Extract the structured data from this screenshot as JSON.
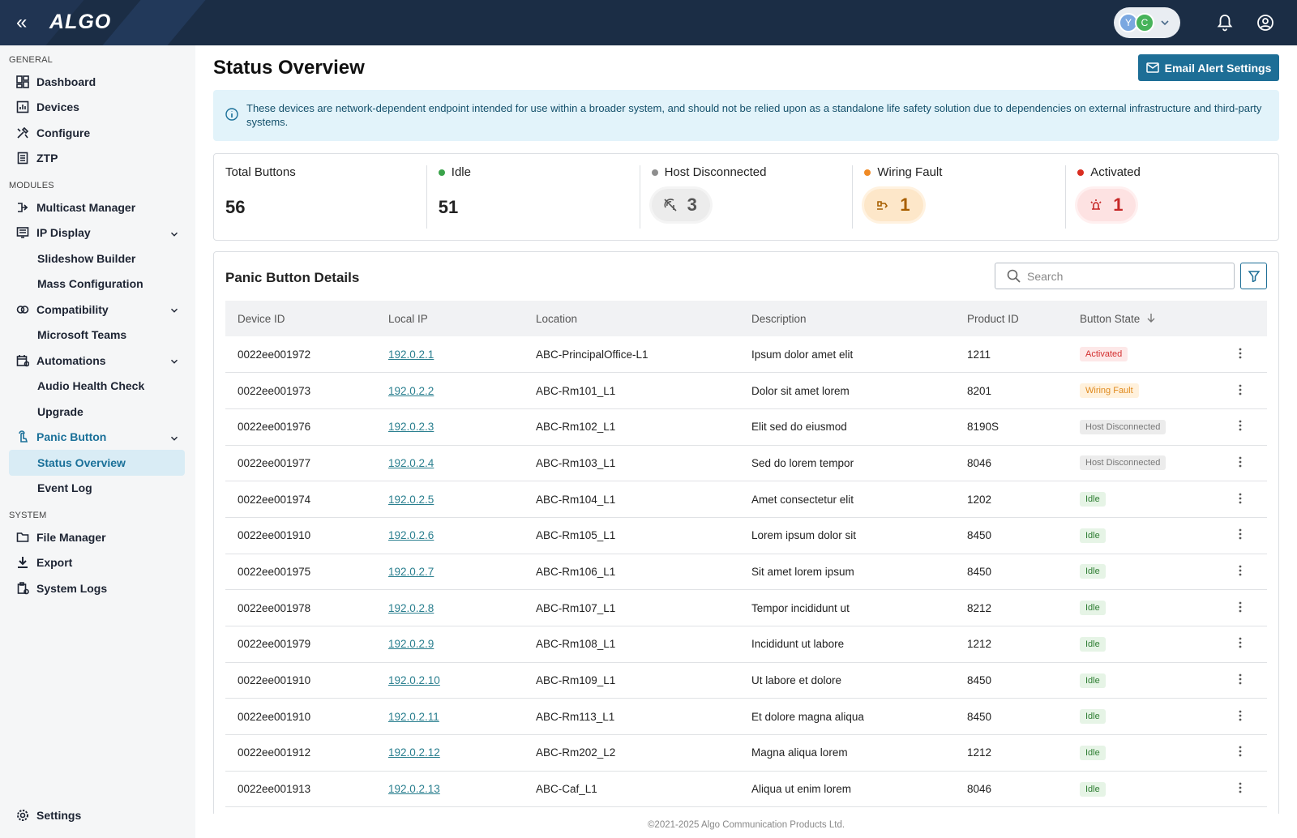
{
  "header": {
    "brand": "ALGO",
    "avatars": [
      "Y",
      "C"
    ]
  },
  "sidebar": {
    "sections": [
      {
        "title": "GENERAL",
        "items": [
          {
            "label": "Dashboard"
          },
          {
            "label": "Devices"
          },
          {
            "label": "Configure"
          },
          {
            "label": "ZTP"
          }
        ]
      },
      {
        "title": "MODULES",
        "items": [
          {
            "label": "Multicast Manager"
          },
          {
            "label": "IP Display",
            "children": [
              "Slideshow Builder",
              "Mass Configuration"
            ]
          },
          {
            "label": "Compatibility",
            "children": [
              "Microsoft Teams"
            ]
          },
          {
            "label": "Automations",
            "children": [
              "Audio Health Check",
              "Upgrade"
            ]
          },
          {
            "label": "Panic Button",
            "children": [
              "Status Overview",
              "Event Log"
            ]
          }
        ]
      },
      {
        "title": "SYSTEM",
        "items": [
          {
            "label": "File Manager"
          },
          {
            "label": "Export"
          },
          {
            "label": "System Logs"
          }
        ]
      }
    ],
    "settings": "Settings"
  },
  "page": {
    "title": "Status Overview",
    "button": "Email Alert Settings",
    "notice": "These devices are network-dependent endpoint intended for use within a broader system, and should not be relied upon as a standalone life safety solution due to dependencies on external infrastructure and third-party systems."
  },
  "stats": [
    {
      "label": "Total Buttons",
      "value": 56
    },
    {
      "label": "Idle",
      "value": 51
    },
    {
      "label": "Host Disconnected",
      "value": 3
    },
    {
      "label": "Wiring Fault",
      "value": 1
    },
    {
      "label": "Activated",
      "value": 1
    }
  ],
  "table": {
    "title": "Panic Button Details",
    "search_placeholder": "Search",
    "columns": [
      "Device ID",
      "Local IP",
      "Location",
      "Description",
      "Product ID",
      "Button State"
    ],
    "rows": [
      [
        "0022ee001972",
        "192.0.2.1",
        "ABC-PrincipalOffice-L1",
        "Ipsum dolor amet elit",
        "1211",
        "Activated"
      ],
      [
        "0022ee001973",
        "192.0.2.2",
        "ABC-Rm101_L1",
        "Dolor sit amet lorem",
        "8201",
        "Wiring Fault"
      ],
      [
        "0022ee001976",
        "192.0.2.3",
        "ABC-Rm102_L1",
        "Elit sed do eiusmod",
        "8190S",
        "Host Disconnected"
      ],
      [
        "0022ee001977",
        "192.0.2.4",
        "ABC-Rm103_L1",
        "Sed do lorem tempor",
        "8046",
        "Host Disconnected"
      ],
      [
        "0022ee001974",
        "192.0.2.5",
        "ABC-Rm104_L1",
        "Amet consectetur elit",
        "1202",
        "Idle"
      ],
      [
        "0022ee001910",
        "192.0.2.6",
        "ABC-Rm105_L1",
        "Lorem ipsum dolor sit",
        "8450",
        "Idle"
      ],
      [
        "0022ee001975",
        "192.0.2.7",
        "ABC-Rm106_L1",
        "Sit amet lorem ipsum",
        "8450",
        "Idle"
      ],
      [
        "0022ee001978",
        "192.0.2.8",
        "ABC-Rm107_L1",
        "Tempor incididunt ut",
        "8212",
        "Idle"
      ],
      [
        "0022ee001979",
        "192.0.2.9",
        "ABC-Rm108_L1",
        "Incididunt ut labore",
        "1212",
        "Idle"
      ],
      [
        "0022ee001910",
        "192.0.2.10",
        "ABC-Rm109_L1",
        "Ut labore et dolore",
        "8450",
        "Idle"
      ],
      [
        "0022ee001910",
        "192.0.2.11",
        "ABC-Rm113_L1",
        "Et dolore magna aliqua",
        "8450",
        "Idle"
      ],
      [
        "0022ee001912",
        "192.0.2.12",
        "ABC-Rm202_L2",
        "Magna aliqua lorem",
        "1212",
        "Idle"
      ],
      [
        "0022ee001913",
        "192.0.2.13",
        "ABC-Caf_L1",
        "Aliqua ut enim lorem",
        "8046",
        "Idle"
      ]
    ]
  },
  "footer": "©2021-2025 Algo Communication Products Ltd."
}
